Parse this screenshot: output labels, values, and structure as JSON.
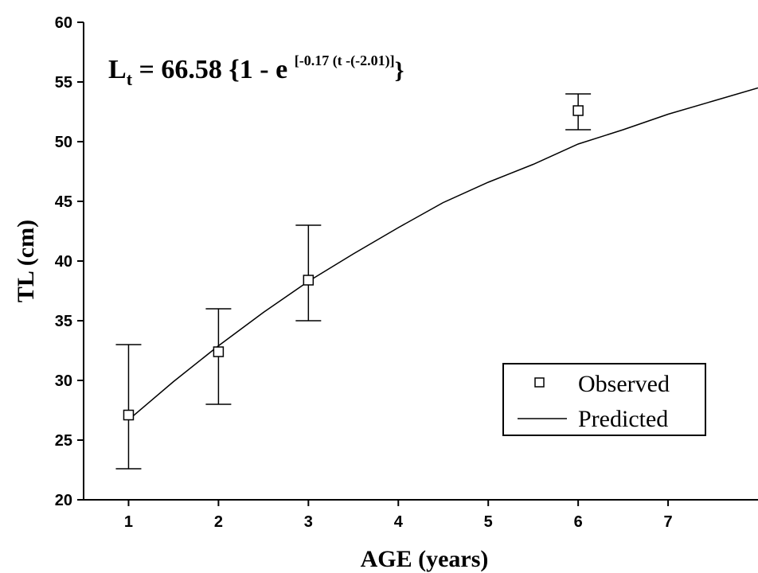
{
  "chart_data": {
    "type": "scatter",
    "title": "",
    "equation": {
      "lhs_main": "L",
      "lhs_sub": "t",
      "rhs_main": " = 66.58 {1 - e ",
      "rhs_sup": "[-0.17 (t -(-2.01)]",
      "rhs_close": "}"
    },
    "xlabel": "AGE (years)",
    "ylabel": "TL (cm)",
    "xlim": [
      0.5,
      8
    ],
    "ylim": [
      20,
      60
    ],
    "x_ticks": [
      "1",
      "2",
      "3",
      "4",
      "5",
      "6",
      "7"
    ],
    "y_ticks": [
      "20",
      "25",
      "30",
      "35",
      "40",
      "45",
      "50",
      "55",
      "60"
    ],
    "grid": false,
    "legend_position": "bottom-right",
    "series": [
      {
        "name": "Observed",
        "type": "scatter",
        "marker": "open-square",
        "x": [
          1,
          2,
          3,
          6
        ],
        "y": [
          27.1,
          32.4,
          38.4,
          52.6
        ],
        "error_low": [
          22.6,
          28.0,
          35.0,
          51.0
        ],
        "error_high": [
          33.0,
          36.0,
          43.0,
          54.0
        ]
      },
      {
        "name": "Predicted",
        "type": "line",
        "model": {
          "Linf": 66.58,
          "K": 0.17,
          "t0": -2.01
        },
        "x": [
          1,
          1.5,
          2,
          2.5,
          3,
          3.5,
          4,
          4.5,
          5,
          5.5,
          6,
          6.5,
          7,
          7.5,
          8
        ],
        "y": [
          26.7,
          29.9,
          32.9,
          35.7,
          38.3,
          40.6,
          42.8,
          44.9,
          46.6,
          48.1,
          49.8,
          51.0,
          52.3,
          53.4,
          54.5
        ]
      }
    ]
  }
}
